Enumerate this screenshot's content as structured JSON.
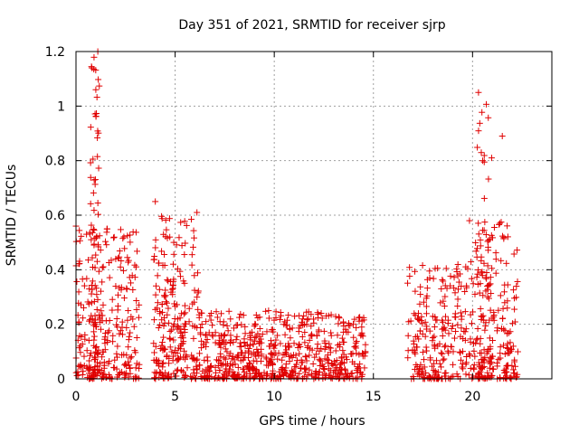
{
  "chart_data": {
    "type": "scatter",
    "title": "Day 351 of 2021, SRMTID for receiver sjrp",
    "xlabel": "GPS time / hours",
    "ylabel": "SRMTID / TECUs",
    "xlim": [
      0,
      24
    ],
    "ylim": [
      0,
      1.2
    ],
    "xticks": [
      0,
      5,
      10,
      15,
      20
    ],
    "xtick_labels": [
      "0",
      "5",
      "10",
      "15",
      "20"
    ],
    "yticks": [
      0,
      0.2,
      0.4,
      0.6,
      0.8,
      1.0,
      1.2
    ],
    "ytick_labels": [
      "0",
      "0.2",
      "0.4",
      "0.6",
      "0.8",
      "1",
      "1.2"
    ],
    "grid": true,
    "marker": "+",
    "color": "#e00000",
    "series": [
      {
        "name": "SRMTID",
        "clusters": [
          {
            "x_range": [
              0.0,
              3.2
            ],
            "y_max": 0.55,
            "count": 260
          },
          {
            "x_range": [
              0.7,
              1.2
            ],
            "y_max": 1.2,
            "count": 80
          },
          {
            "x_range": [
              3.9,
              6.2
            ],
            "y_max": 0.6,
            "count": 230
          },
          {
            "x_range": [
              6.2,
              14.6
            ],
            "y_max": 0.25,
            "count": 650
          },
          {
            "x_range": [
              16.7,
              19.8
            ],
            "y_max": 0.42,
            "count": 220
          },
          {
            "x_range": [
              19.8,
              22.3
            ],
            "y_max": 0.6,
            "count": 200
          },
          {
            "x_range": [
              20.2,
              21.0
            ],
            "y_max": 1.05,
            "count": 60
          }
        ],
        "notable_points": [
          {
            "x": 1.1,
            "y": 1.2
          },
          {
            "x": 0.8,
            "y": 1.14
          },
          {
            "x": 1.0,
            "y": 1.06
          },
          {
            "x": 20.3,
            "y": 1.05
          },
          {
            "x": 21.5,
            "y": 0.89
          },
          {
            "x": 4.0,
            "y": 0.65
          },
          {
            "x": 6.1,
            "y": 0.61
          },
          {
            "x": 0.0,
            "y": 0.56
          }
        ]
      }
    ]
  }
}
